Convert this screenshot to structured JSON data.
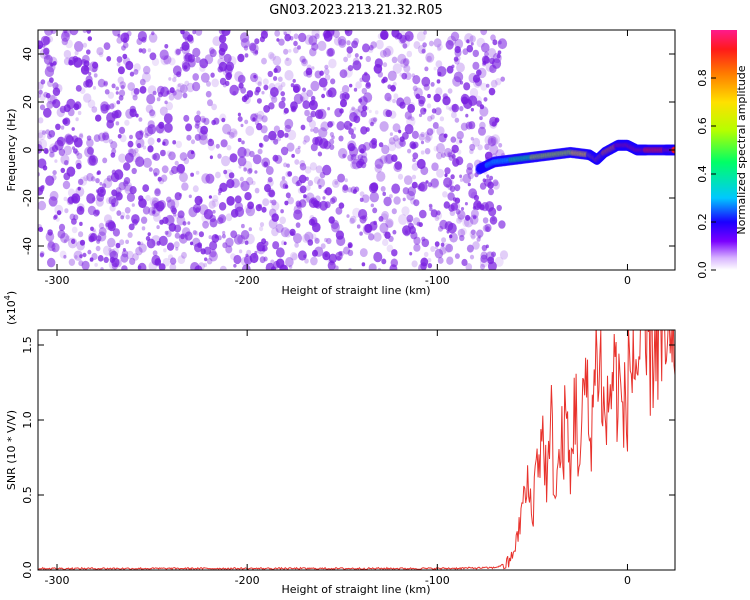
{
  "title": "GN03.2023.213.21.32.R05",
  "colors": {
    "snr_line": "#e8322c",
    "spectrogram_noise": "#7a1fe0",
    "colormap": [
      "#d8b4ff",
      "#7a00ff",
      "#1a00ff",
      "#00c8ff",
      "#00ff66",
      "#b4ff00",
      "#ffe000",
      "#ff7a00",
      "#ff1a1a",
      "#ff1a8c"
    ]
  },
  "chart_data": [
    {
      "type": "heatmap",
      "panel": "spectrogram",
      "xlabel": "Height of straight line (km)",
      "ylabel": "Frequency (Hz)",
      "xlim": [
        -310,
        25
      ],
      "ylim": [
        -50,
        50
      ],
      "xticks": [
        -300,
        -200,
        -100,
        0
      ],
      "yticks": [
        40,
        20,
        0,
        -20,
        -40
      ],
      "colorbar": {
        "label": "Normalized spectral amplitude",
        "range": [
          0.0,
          1.0
        ],
        "ticks": [
          "0.0",
          "0.2",
          "0.4",
          "0.6",
          "0.8"
        ]
      },
      "noise_region_x": [
        -310,
        -70
      ],
      "signal_trace": {
        "x": [
          -78,
          -70,
          -60,
          -50,
          -40,
          -30,
          -20,
          -16,
          -12,
          -5,
          0,
          5,
          10,
          20,
          25
        ],
        "y": [
          -8,
          -5,
          -4,
          -3,
          -2,
          -1,
          -2,
          -4,
          -1,
          2,
          2,
          0,
          0,
          0,
          0
        ],
        "amplitude": [
          0.25,
          0.3,
          0.4,
          0.5,
          0.55,
          0.6,
          0.7,
          0.75,
          0.75,
          0.85,
          0.9,
          0.9,
          0.9,
          0.9,
          0.9
        ]
      }
    },
    {
      "type": "line",
      "panel": "snr",
      "xlabel": "Height of straight line (km)",
      "ylabel": "SNR (10 * V/V)",
      "yscale_label": "(x10",
      "yscale_exp": "4",
      "yscale_close": ")",
      "xlim": [
        -310,
        25
      ],
      "ylim": [
        0,
        1.6
      ],
      "xticks": [
        -300,
        -200,
        -100,
        0
      ],
      "yticks": [
        "0.0",
        "0.5",
        "1.0",
        "1.5"
      ],
      "series": [
        {
          "x": [
            -310,
            -250,
            -200,
            -150,
            -100,
            -70,
            -62,
            -58,
            -55,
            -52,
            -50,
            -48,
            -45,
            -42,
            -40,
            -38,
            -35,
            -32,
            -30,
            -28,
            -25,
            -22,
            -20,
            -18,
            -15,
            -12,
            -10,
            -8,
            -5,
            -2,
            0,
            3,
            5,
            8,
            10,
            12,
            15,
            18,
            20,
            22,
            25
          ],
          "y": [
            0.01,
            0.01,
            0.01,
            0.01,
            0.01,
            0.015,
            0.05,
            0.2,
            0.45,
            0.55,
            0.35,
            0.7,
            0.9,
            0.6,
            0.95,
            0.5,
            0.8,
            1.0,
            0.55,
            1.2,
            0.7,
            1.3,
            0.85,
            1.15,
            1.55,
            0.95,
            1.1,
            1.3,
            1.25,
            1.0,
            1.2,
            1.45,
            1.35,
            1.55,
            1.4,
            1.5,
            1.6,
            1.45,
            1.5,
            1.35,
            1.3
          ]
        }
      ]
    }
  ]
}
